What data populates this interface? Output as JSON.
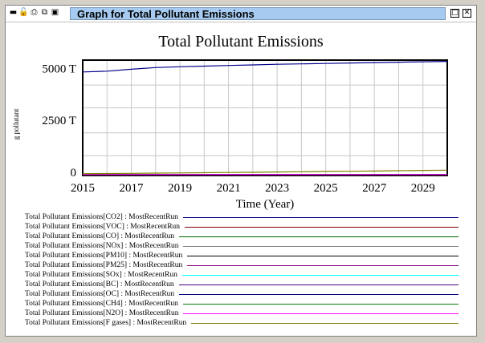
{
  "window": {
    "title": "Graph for Total Pollutant Emissions",
    "toolbar_icons": [
      "minimize-icon",
      "lock-icon",
      "print-icon",
      "copy-icon",
      "save-icon"
    ],
    "controls": [
      "restore-icon",
      "close-icon"
    ]
  },
  "chart_data": {
    "type": "line",
    "title": "Total Pollutant Emissions",
    "xlabel": "Time (Year)",
    "ylabel": "g pollutant",
    "xlim": [
      2015,
      2030
    ],
    "ylim": [
      -150,
      5400
    ],
    "x_ticks": [
      "2015",
      "2017",
      "2019",
      "2021",
      "2023",
      "2025",
      "2027",
      "2029"
    ],
    "y_ticks": [
      {
        "value": 5000,
        "label": "5000 T"
      },
      {
        "value": 2500,
        "label": "2500 T"
      },
      {
        "value": 0,
        "label": "0"
      }
    ],
    "grid": true,
    "x": [
      2015,
      2016,
      2017,
      2018,
      2019,
      2020,
      2021,
      2022,
      2023,
      2024,
      2025,
      2026,
      2027,
      2028,
      2029,
      2030
    ],
    "series": [
      {
        "name": "Total Pollutant Emissions[CO2] : MostRecentRun",
        "color": "#00008b",
        "values": [
          4830,
          4870,
          4960,
          5040,
          5080,
          5110,
          5140,
          5170,
          5200,
          5220,
          5240,
          5260,
          5280,
          5300,
          5320,
          5340
        ]
      },
      {
        "name": "Total Pollutant Emissions[VOC] : MostRecentRun",
        "color": "#800000",
        "values": [
          -110,
          -110,
          -110,
          -110,
          -110,
          -110,
          -110,
          -110,
          -110,
          -110,
          -110,
          -110,
          -110,
          -110,
          -110,
          -110
        ]
      },
      {
        "name": "Total Pollutant Emissions[CO] : MostRecentRun",
        "color": "#006400",
        "values": [
          -100,
          -100,
          -100,
          -100,
          -100,
          -100,
          -100,
          -100,
          -100,
          -100,
          -100,
          -100,
          -100,
          -100,
          -100,
          -100
        ]
      },
      {
        "name": "Total Pollutant Emissions[NOx] : MostRecentRun",
        "color": "#808080",
        "values": [
          -105,
          -105,
          -105,
          -105,
          -105,
          -105,
          -105,
          -105,
          -105,
          -105,
          -105,
          -105,
          -105,
          -105,
          -105,
          -105
        ]
      },
      {
        "name": "Total Pollutant Emissions[PM10] : MostRecentRun",
        "color": "#000000",
        "values": [
          -108,
          -108,
          -108,
          -108,
          -108,
          -108,
          -108,
          -108,
          -108,
          -108,
          -108,
          -108,
          -108,
          -108,
          -108,
          -108
        ]
      },
      {
        "name": "Total Pollutant Emissions[PM25] : MostRecentRun",
        "color": "#800080",
        "values": [
          -109,
          -109,
          -109,
          -109,
          -109,
          -109,
          -109,
          -109,
          -109,
          -109,
          -109,
          -109,
          -109,
          -109,
          -109,
          -109
        ]
      },
      {
        "name": "Total Pollutant Emissions[SOx] : MostRecentRun",
        "color": "#00ffff",
        "values": [
          -107,
          -107,
          -107,
          -107,
          -107,
          -107,
          -107,
          -107,
          -107,
          -107,
          -107,
          -107,
          -107,
          -107,
          -107,
          -107
        ]
      },
      {
        "name": "Total Pollutant Emissions[BC] : MostRecentRun",
        "color": "#4b0082",
        "values": [
          -106,
          -106,
          -106,
          -106,
          -106,
          -106,
          -106,
          -106,
          -106,
          -106,
          -106,
          -106,
          -106,
          -106,
          -106,
          -106
        ]
      },
      {
        "name": "Total Pollutant Emissions[OC] : MostRecentRun",
        "color": "#000080",
        "values": [
          -104,
          -104,
          -104,
          -104,
          -104,
          -104,
          -104,
          -104,
          -104,
          -104,
          -104,
          -104,
          -104,
          -104,
          -104,
          -104
        ]
      },
      {
        "name": "Total Pollutant Emissions[CH4] : MostRecentRun",
        "color": "#008000",
        "values": [
          -103,
          -103,
          -103,
          -103,
          -103,
          -103,
          -103,
          -103,
          -103,
          -103,
          -103,
          -103,
          -103,
          -103,
          -103,
          -103
        ]
      },
      {
        "name": "Total Pollutant Emissions[N2O] : MostRecentRun",
        "color": "#ff00ff",
        "values": [
          -102,
          -102,
          -102,
          -102,
          -102,
          -102,
          -102,
          -102,
          -102,
          -102,
          -102,
          -102,
          -102,
          -102,
          -102,
          -102
        ]
      },
      {
        "name": "Total Pollutant Emissions[F gases] : MostRecentRun",
        "color": "#808000",
        "values": [
          -60,
          -55,
          -45,
          -35,
          -25,
          -15,
          -5,
          5,
          20,
          30,
          45,
          55,
          65,
          80,
          95,
          110
        ]
      }
    ]
  }
}
